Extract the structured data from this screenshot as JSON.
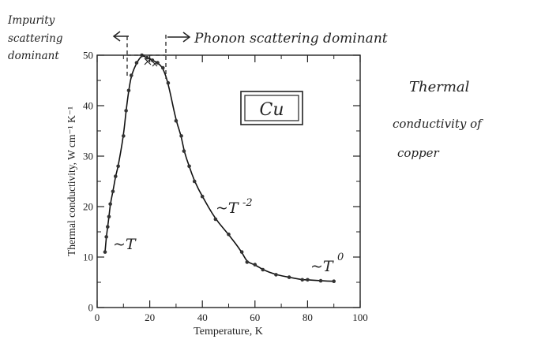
{
  "annotations": {
    "impurity_line1": "Impurity",
    "impurity_line2": "scattering",
    "impurity_line3": "dominant",
    "phonon": "Phonon scattering dominant",
    "element": "Cu",
    "note_line1": "Thermal",
    "note_line2": "conductivity of",
    "note_line3": "copper",
    "label_low": "~T",
    "label_mid": "~T",
    "label_mid_exp": "-2",
    "label_high": "~T",
    "label_high_exp": "0"
  },
  "chart_data": {
    "type": "line",
    "title": "",
    "xlabel": "Temperature, K",
    "ylabel": "Thermal conductivity, W cm⁻¹ K⁻¹",
    "xlim": [
      0,
      100
    ],
    "ylim": [
      0,
      50
    ],
    "xticks": [
      0,
      20,
      40,
      60,
      80,
      100
    ],
    "yticks": [
      0,
      10,
      20,
      30,
      40,
      50
    ],
    "grid": false,
    "series": [
      {
        "points": [
          [
            3,
            11
          ],
          [
            3.5,
            14
          ],
          [
            4,
            16
          ],
          [
            4.5,
            18
          ],
          [
            5,
            20.5
          ],
          [
            6,
            23
          ],
          [
            7,
            26
          ],
          [
            8,
            28
          ],
          [
            10,
            34
          ],
          [
            11,
            39
          ],
          [
            12,
            43
          ],
          [
            13,
            46
          ],
          [
            15,
            48.5
          ],
          [
            17,
            50
          ],
          [
            19,
            49.5
          ],
          [
            21,
            49
          ],
          [
            23,
            48.5
          ],
          [
            25,
            47.5
          ],
          [
            27,
            44.5
          ],
          [
            30,
            37
          ],
          [
            32,
            34
          ],
          [
            33,
            31
          ],
          [
            35,
            28
          ],
          [
            37,
            25
          ],
          [
            40,
            22
          ],
          [
            45,
            17.5
          ],
          [
            50,
            14.5
          ],
          [
            55,
            11
          ],
          [
            57,
            9
          ],
          [
            60,
            8.5
          ],
          [
            63,
            7.5
          ],
          [
            68,
            6.5
          ],
          [
            73,
            6
          ],
          [
            78,
            5.5
          ],
          [
            80,
            5.5
          ],
          [
            85,
            5.3
          ],
          [
            90,
            5.2
          ]
        ]
      }
    ]
  }
}
